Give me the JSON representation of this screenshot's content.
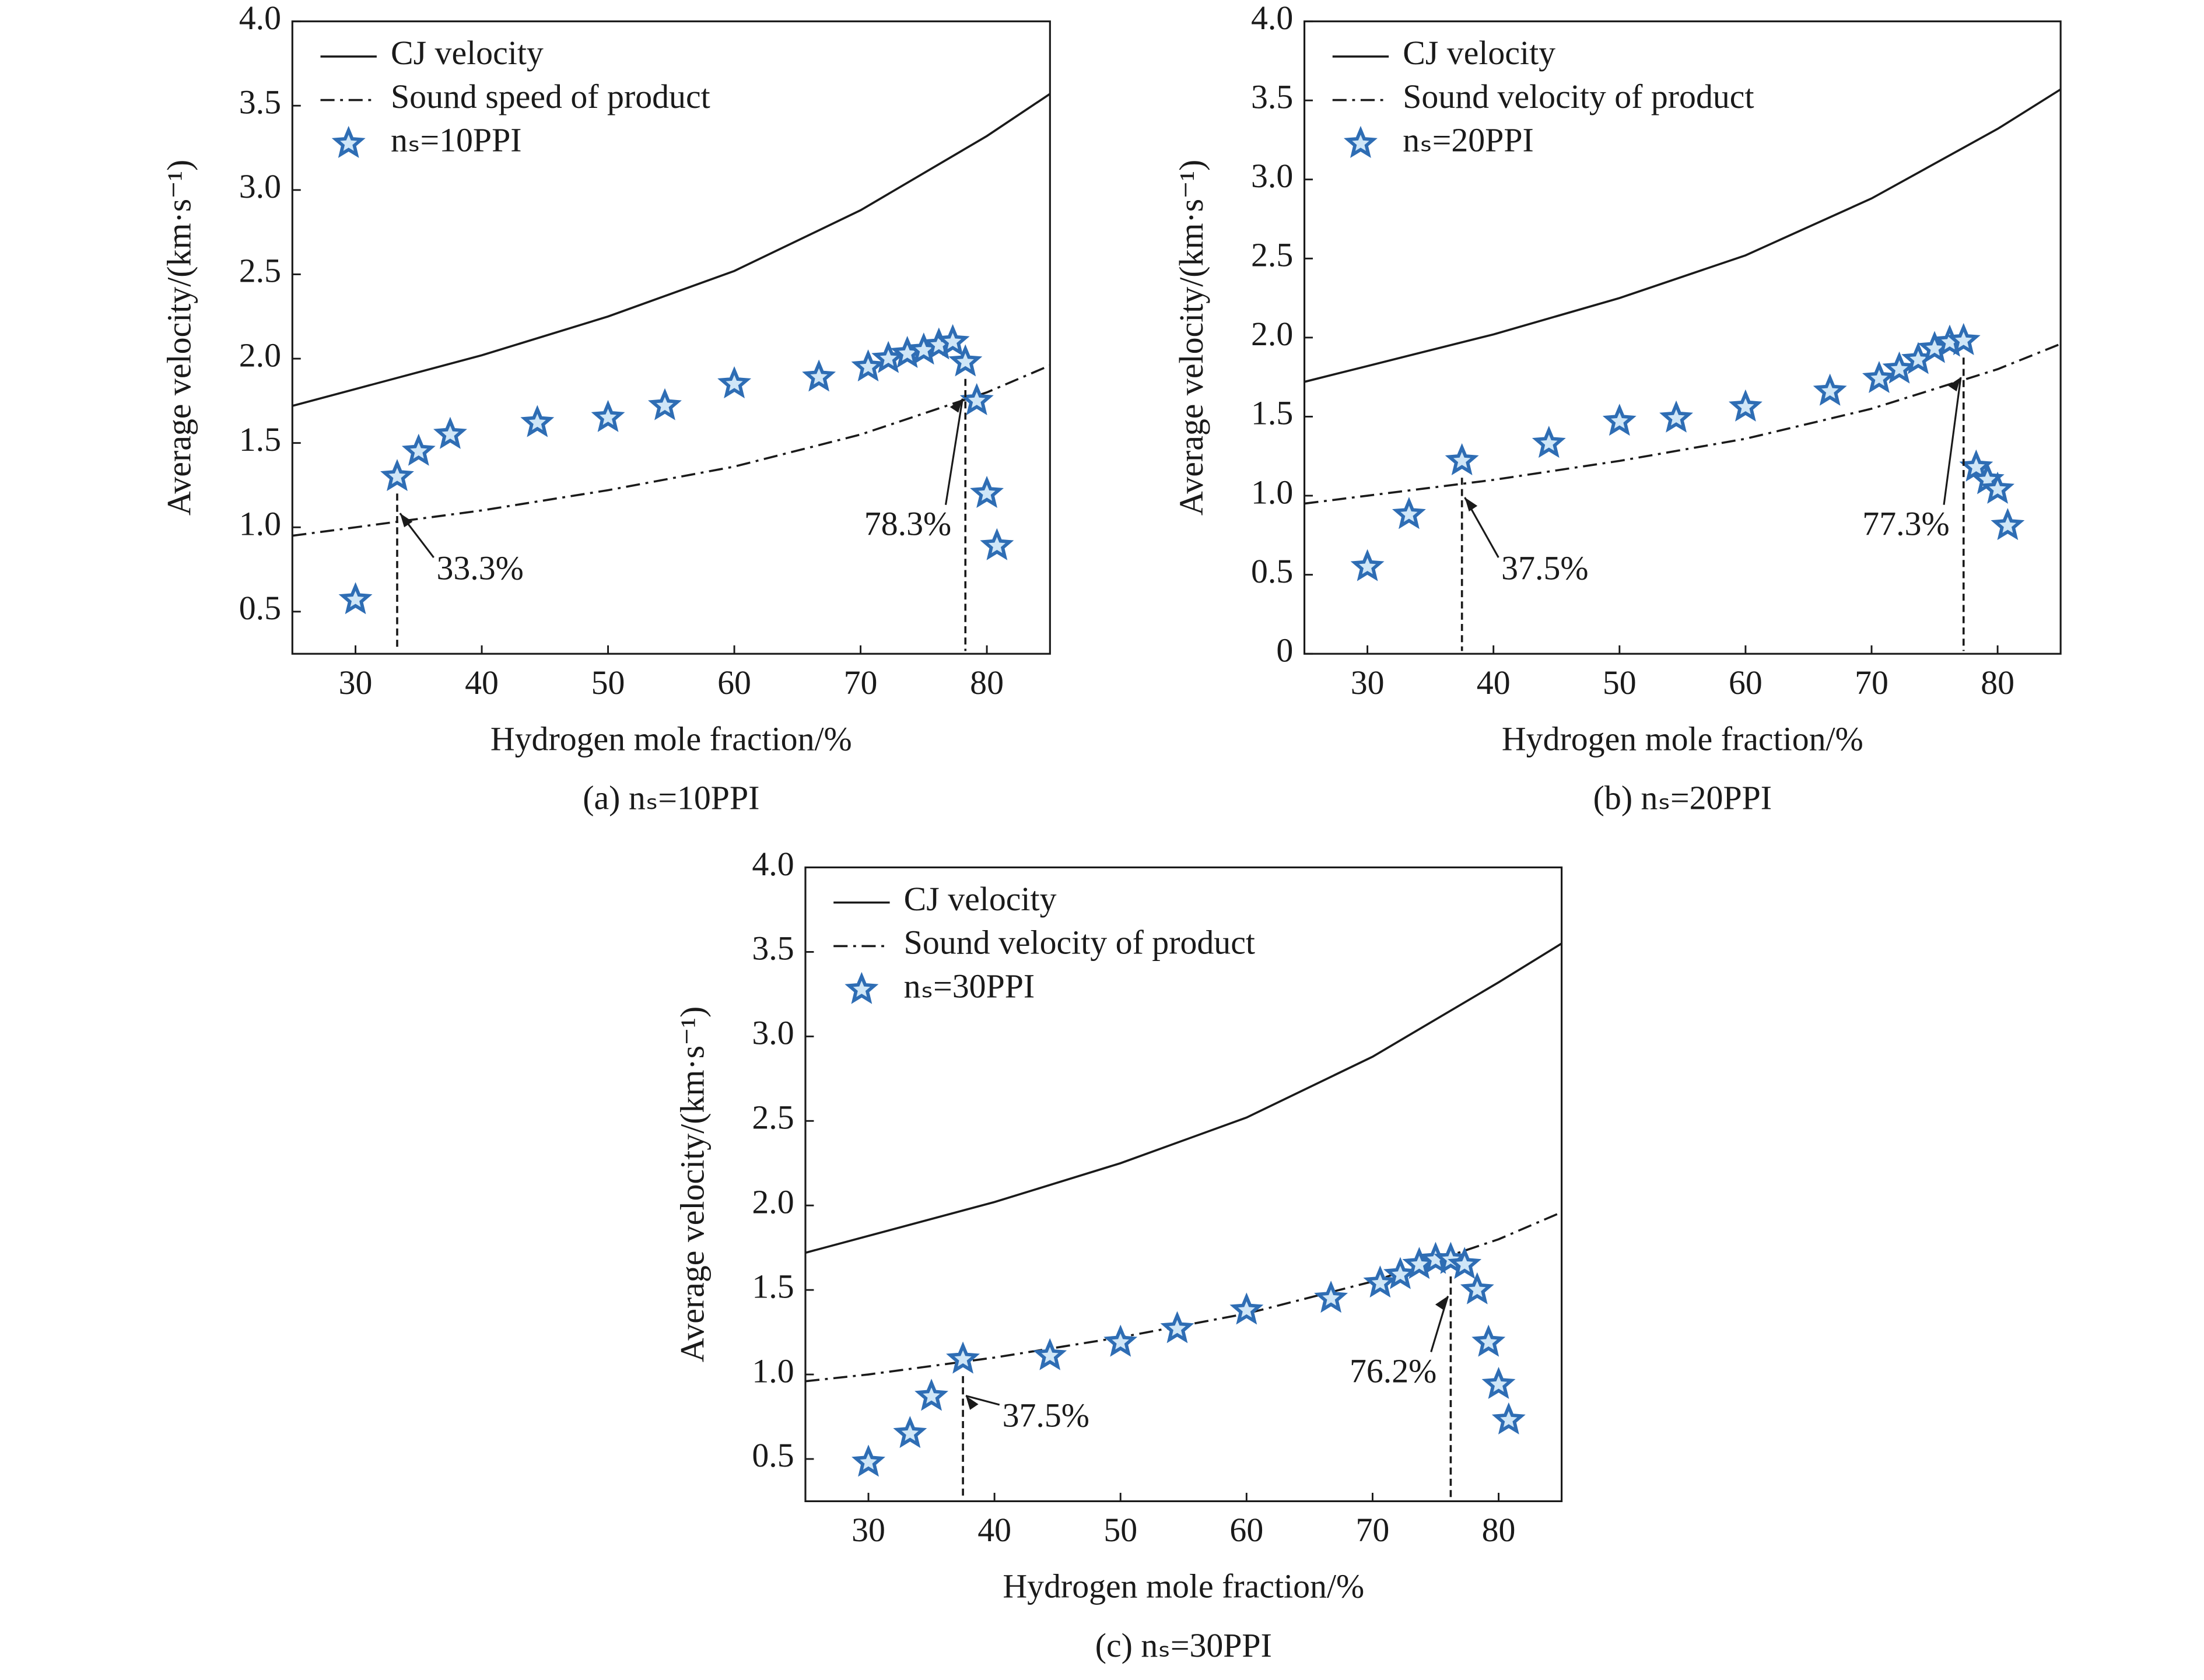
{
  "chart_data": [
    {
      "type": "line",
      "caption": "(a) nₛ=10PPI",
      "xlabel": "Hydrogen mole fraction/%",
      "ylabel": "Average velocity/(km·s⁻¹)",
      "xlim": [
        25,
        85
      ],
      "xticks": [
        30,
        40,
        50,
        60,
        70,
        80
      ],
      "ylim": [
        0.25,
        4.0
      ],
      "yticks": [
        0.5,
        {
          "value": 1,
          "label": "1.0"
        },
        1.5,
        {
          "value": 2,
          "label": "2.0"
        },
        2.5,
        {
          "value": 3,
          "label": "3.0"
        },
        3.5,
        {
          "value": 4,
          "label": "4.0"
        }
      ],
      "series": [
        {
          "name": "CJ velocity",
          "kind": "line",
          "dash": "solid",
          "color": "#1a1a1a",
          "x": [
            25,
            30,
            40,
            50,
            60,
            70,
            80,
            85
          ],
          "values": [
            1.72,
            1.82,
            2.02,
            2.25,
            2.52,
            2.88,
            3.32,
            3.57
          ]
        },
        {
          "name": "Sound speed of product",
          "kind": "line",
          "dash": "dashdot",
          "color": "#1a1a1a",
          "x": [
            25,
            30,
            40,
            50,
            60,
            70,
            80,
            85
          ],
          "values": [
            0.95,
            1.0,
            1.1,
            1.22,
            1.36,
            1.55,
            1.8,
            1.96
          ]
        },
        {
          "name": "nₛ=10PPI",
          "kind": "scatter",
          "color": "#2e6db4",
          "x": [
            30,
            33.3,
            35,
            37.5,
            44.4,
            50,
            54.5,
            60,
            66.7,
            70.6,
            72.2,
            73.7,
            75,
            76.2,
            77.3,
            78.3,
            79.2,
            80,
            80.8
          ],
          "values": [
            0.57,
            1.3,
            1.45,
            1.55,
            1.62,
            1.65,
            1.72,
            1.85,
            1.89,
            1.95,
            2.0,
            2.03,
            2.05,
            2.08,
            2.1,
            1.98,
            1.75,
            1.2,
            0.89
          ]
        }
      ],
      "annotations": [
        {
          "value": 33.3,
          "label": "33.3%"
        },
        {
          "value": 78.3,
          "label": "78.3%"
        }
      ]
    },
    {
      "type": "line",
      "caption": "(b) nₛ=20PPI",
      "xlabel": "Hydrogen mole fraction/%",
      "ylabel": "Average velocity/(km·s⁻¹)",
      "xlim": [
        25,
        85
      ],
      "xticks": [
        30,
        40,
        50,
        60,
        70,
        80
      ],
      "ylim": [
        0,
        4.0
      ],
      "yticks": [
        0,
        0.5,
        {
          "value": 1,
          "label": "1.0"
        },
        1.5,
        {
          "value": 2,
          "label": "2.0"
        },
        2.5,
        {
          "value": 3,
          "label": "3.0"
        },
        3.5,
        {
          "value": 4,
          "label": "4.0"
        }
      ],
      "series": [
        {
          "name": "CJ velocity",
          "kind": "line",
          "dash": "solid",
          "color": "#1a1a1a",
          "x": [
            25,
            30,
            40,
            50,
            60,
            70,
            80,
            85
          ],
          "values": [
            1.72,
            1.82,
            2.02,
            2.25,
            2.52,
            2.88,
            3.32,
            3.57
          ]
        },
        {
          "name": "Sound velocity of product",
          "kind": "line",
          "dash": "dashdot",
          "color": "#1a1a1a",
          "x": [
            25,
            30,
            40,
            50,
            60,
            70,
            80,
            85
          ],
          "values": [
            0.95,
            1.0,
            1.1,
            1.22,
            1.36,
            1.55,
            1.8,
            1.96
          ]
        },
        {
          "name": "nₛ=20PPI",
          "kind": "scatter",
          "color": "#2e6db4",
          "x": [
            30,
            33.3,
            37.5,
            44.4,
            50,
            54.5,
            60,
            66.7,
            70.6,
            72.2,
            73.7,
            75,
            76.2,
            77.3,
            78.3,
            79.2,
            80,
            80.8
          ],
          "values": [
            0.55,
            0.88,
            1.22,
            1.33,
            1.47,
            1.49,
            1.56,
            1.66,
            1.74,
            1.8,
            1.86,
            1.93,
            1.97,
            1.98,
            1.18,
            1.1,
            1.04,
            0.81
          ]
        }
      ],
      "annotations": [
        {
          "value": 37.5,
          "label": "37.5%"
        },
        {
          "value": 77.3,
          "label": "77.3%"
        }
      ]
    },
    {
      "type": "line",
      "caption": "(c) nₛ=30PPI",
      "xlabel": "Hydrogen mole fraction/%",
      "ylabel": "Average velocity/(km·s⁻¹)",
      "xlim": [
        25,
        85
      ],
      "xticks": [
        30,
        40,
        50,
        60,
        70,
        80
      ],
      "ylim": [
        0.25,
        4.0
      ],
      "yticks": [
        0.5,
        {
          "value": 1,
          "label": "1.0"
        },
        1.5,
        {
          "value": 2,
          "label": "2.0"
        },
        2.5,
        {
          "value": 3,
          "label": "3.0"
        },
        3.5,
        {
          "value": 4,
          "label": "4.0"
        }
      ],
      "series": [
        {
          "name": "CJ velocity",
          "kind": "line",
          "dash": "solid",
          "color": "#1a1a1a",
          "x": [
            25,
            30,
            40,
            50,
            60,
            70,
            80,
            85
          ],
          "values": [
            1.72,
            1.82,
            2.02,
            2.25,
            2.52,
            2.88,
            3.32,
            3.55
          ]
        },
        {
          "name": "Sound velocity of product",
          "kind": "line",
          "dash": "dashdot",
          "color": "#1a1a1a",
          "x": [
            25,
            30,
            40,
            50,
            60,
            70,
            80,
            85
          ],
          "values": [
            0.96,
            1.0,
            1.1,
            1.22,
            1.36,
            1.55,
            1.8,
            1.96
          ]
        },
        {
          "name": "nₛ=30PPI",
          "kind": "scatter",
          "color": "#2e6db4",
          "x": [
            30,
            33.3,
            35,
            37.5,
            44.4,
            50,
            54.5,
            60,
            66.7,
            70.6,
            72.2,
            73.7,
            75,
            76.2,
            77.3,
            78.3,
            79.2,
            80,
            80.8
          ],
          "values": [
            0.48,
            0.65,
            0.87,
            1.09,
            1.11,
            1.19,
            1.27,
            1.38,
            1.45,
            1.54,
            1.59,
            1.65,
            1.68,
            1.68,
            1.65,
            1.5,
            1.19,
            0.94,
            0.73
          ]
        }
      ],
      "annotations": [
        {
          "value": 37.5,
          "label": "37.5%"
        },
        {
          "value": 76.2,
          "label": "76.2%"
        }
      ]
    }
  ]
}
